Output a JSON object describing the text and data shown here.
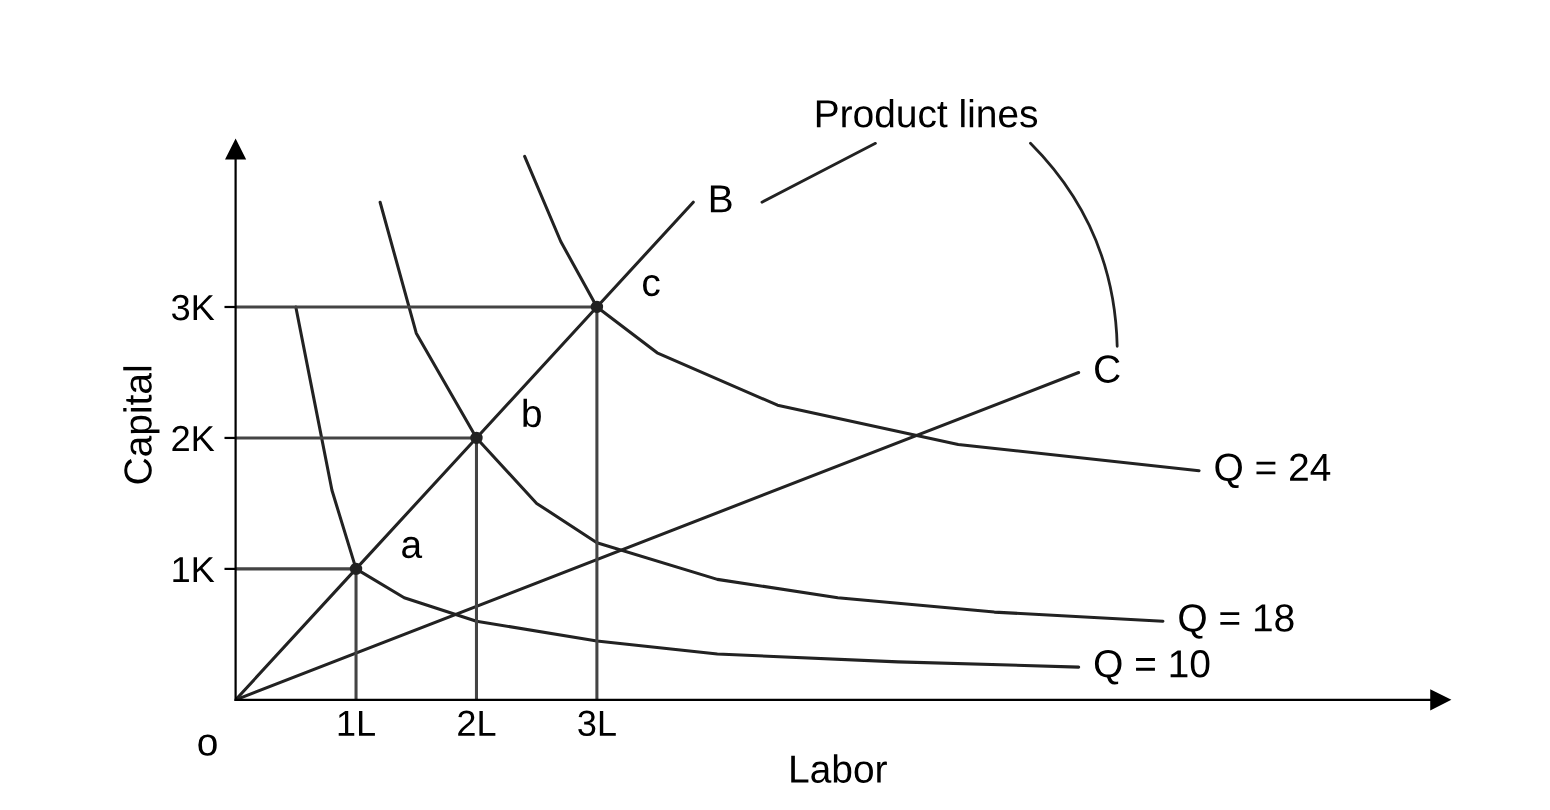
{
  "chart_data": {
    "type": "line",
    "xlabel": "Labor",
    "ylabel": "Capital",
    "xlim": [
      0,
      10
    ],
    "ylim": [
      0,
      4.2
    ],
    "xticks": [
      {
        "value": 1,
        "label": "1L"
      },
      {
        "value": 2,
        "label": "2L"
      },
      {
        "value": 3,
        "label": "3L"
      }
    ],
    "yticks": [
      {
        "value": 1,
        "label": "1K"
      },
      {
        "value": 2,
        "label": "2K"
      },
      {
        "value": 3,
        "label": "3K"
      }
    ],
    "grid": false,
    "marker": "none",
    "line_style": "solid",
    "series": [
      {
        "name": "Q = 10",
        "color": "#222222",
        "x": [
          0.5,
          0.65,
          0.8,
          1,
          1.4,
          2,
          3,
          4,
          5.5,
          7
        ],
        "values": [
          3,
          2.3,
          1.6,
          1,
          0.78,
          0.6,
          0.45,
          0.35,
          0.29,
          0.25
        ]
      },
      {
        "name": "Q = 18",
        "color": "#222222",
        "x": [
          1.2,
          1.5,
          2,
          2.5,
          3,
          4,
          5,
          6.3,
          7.7
        ],
        "values": [
          3.8,
          2.8,
          2,
          1.5,
          1.2,
          0.92,
          0.78,
          0.67,
          0.6
        ]
      },
      {
        "name": "Q = 24",
        "color": "#222222",
        "x": [
          2.4,
          2.7,
          3,
          3.5,
          4.5,
          6,
          8
        ],
        "values": [
          4.15,
          3.5,
          3,
          2.65,
          2.25,
          1.95,
          1.75
        ]
      },
      {
        "name": "B",
        "color": "#222222",
        "x": [
          0,
          1,
          2,
          3,
          3.8
        ],
        "values": [
          0,
          1,
          2,
          3,
          3.8
        ]
      },
      {
        "name": "C",
        "color": "#222222",
        "x": [
          0,
          7
        ],
        "values": [
          0,
          2.5
        ]
      },
      {
        "color": "#444444",
        "x": [
          0,
          1,
          1
        ],
        "values": [
          1,
          1,
          0
        ]
      },
      {
        "color": "#444444",
        "x": [
          0,
          2,
          2
        ],
        "values": [
          2,
          2,
          0
        ]
      },
      {
        "color": "#444444",
        "x": [
          0,
          3,
          3
        ],
        "values": [
          3,
          3,
          0
        ]
      },
      {
        "type": "scatter",
        "marker": "circle",
        "color": "#222222",
        "x": [
          1,
          2,
          3
        ],
        "values": [
          1,
          2,
          3
        ]
      }
    ],
    "annotations": [
      {
        "text": "o",
        "x": 0,
        "y": 0
      },
      {
        "text": "a",
        "x": 1,
        "y": 1
      },
      {
        "text": "b",
        "x": 2,
        "y": 2
      },
      {
        "text": "c",
        "x": 3,
        "y": 3
      },
      "Product lines"
    ]
  }
}
